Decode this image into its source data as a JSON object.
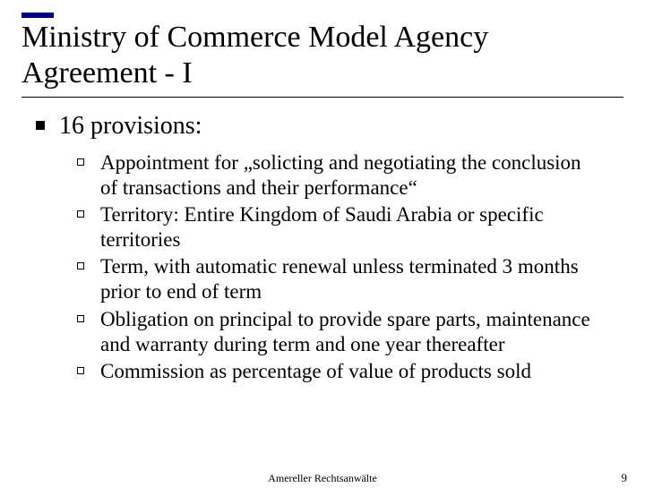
{
  "slide": {
    "title": "Ministry of Commerce Model Agency Agreement - I",
    "title_fontsize": 34,
    "title_accent_color": "#000080",
    "background_color": "#ffffff",
    "text_color": "#000000",
    "level1": {
      "text": "16 provisions:",
      "fontsize": 28,
      "bullet_style": "solid-square",
      "bullet_color": "#000000"
    },
    "level2": {
      "fontsize": 23,
      "bullet_style": "hollow-square",
      "bullet_color": "#000000",
      "items": [
        "Appointment for „solicting and negotiating the conclusion of transactions and their performance“",
        "Territory: Entire Kingdom of Saudi Arabia or specific territories",
        "Term, with automatic renewal unless terminated 3 months prior to end of term",
        "Obligation on principal to provide spare parts, maintenance and warranty during term and one year thereafter",
        "Commission as percentage of value of products sold"
      ]
    },
    "footer": "Amereller Rechtsanwälte",
    "footer_fontsize": 12,
    "page_number": "9",
    "page_number_fontsize": 13
  }
}
